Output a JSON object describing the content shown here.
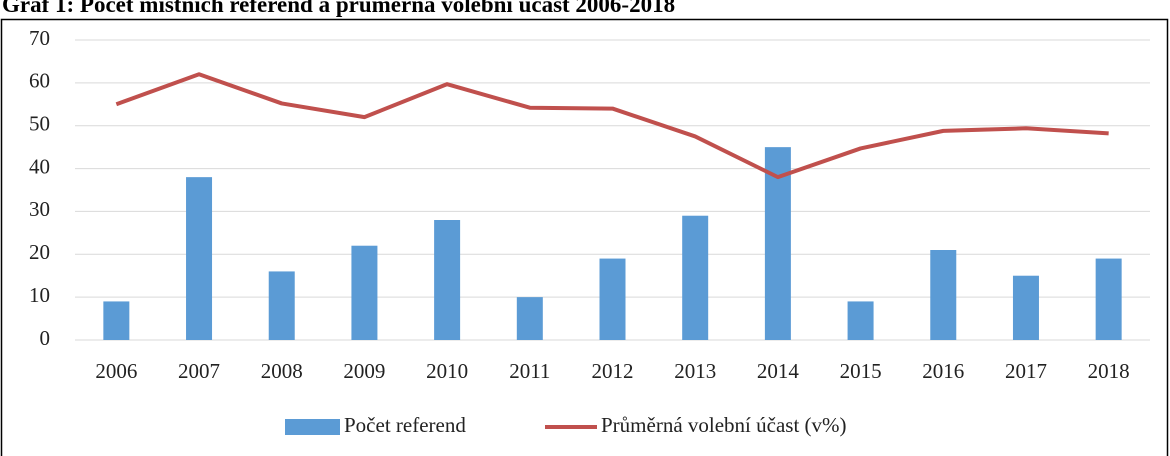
{
  "chart_data": {
    "type": "bar_line",
    "title": "Graf 1: Počet místních referend a průměrná volební účast 2006-2018",
    "categories": [
      "2006",
      "2007",
      "2008",
      "2009",
      "2010",
      "2011",
      "2012",
      "2013",
      "2014",
      "2015",
      "2016",
      "2017",
      "2018"
    ],
    "series": [
      {
        "name": "Počet referend",
        "type": "bar",
        "color": "#5b9bd5",
        "values": [
          9,
          38,
          16,
          22,
          28,
          10,
          19,
          29,
          45,
          9,
          21,
          15,
          19
        ]
      },
      {
        "name": "Průměrná volební účast (v%)",
        "type": "line",
        "color": "#c0504d",
        "values": [
          55,
          62,
          55.2,
          52,
          59.7,
          54.2,
          54,
          47.5,
          38,
          44.7,
          48.8,
          49.4,
          48.2
        ]
      }
    ],
    "ylim": [
      0,
      70
    ],
    "yticks": [
      0,
      10,
      20,
      30,
      40,
      50,
      60,
      70
    ],
    "grid": true,
    "legend": "bottom"
  }
}
